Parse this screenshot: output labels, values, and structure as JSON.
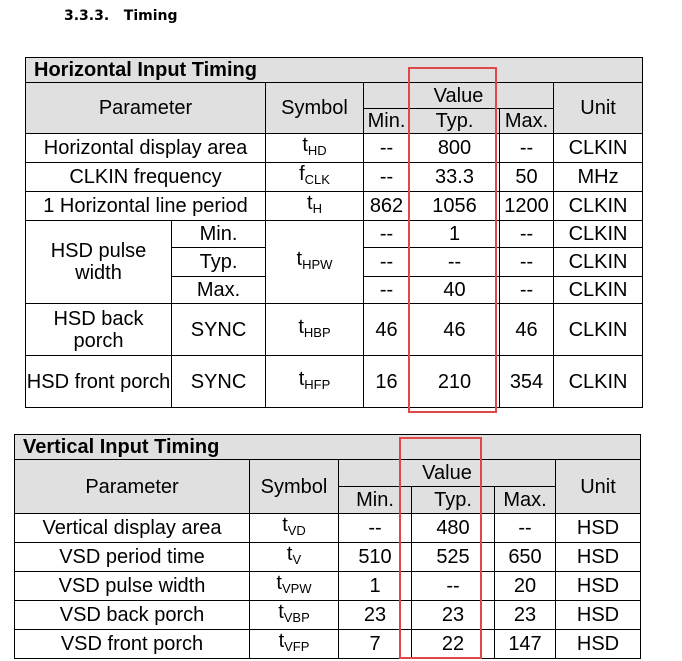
{
  "section_heading": "3.3.3.   Timing",
  "horizontal": {
    "title": "Horizontal Input Timing",
    "headers": {
      "parameter": "Parameter",
      "symbol": "Symbol",
      "value": "Value",
      "min": "Min.",
      "typ": "Typ.",
      "max": "Max.",
      "unit": "Unit"
    },
    "rows": [
      {
        "param": "Horizontal display area",
        "sym": "t",
        "sub": "HD",
        "min": "--",
        "typ": "800",
        "max": "--",
        "unit": "CLKIN"
      },
      {
        "param": "CLKIN frequency",
        "sym": "f",
        "sub": "CLK",
        "min": "--",
        "typ": "33.3",
        "max": "50",
        "unit": "MHz"
      },
      {
        "param": "1 Horizontal line period",
        "sym": "t",
        "sub": "H",
        "min": "862",
        "typ": "1056",
        "max": "1200",
        "unit": "CLKIN"
      }
    ],
    "hsd_pulse": {
      "param": "HSD pulse width",
      "sym": "t",
      "sub": "HPW",
      "rows": [
        {
          "cond": "Min.",
          "min": "--",
          "typ": "1",
          "max": "--",
          "unit": "CLKIN"
        },
        {
          "cond": "Typ.",
          "min": "--",
          "typ": "--",
          "max": "--",
          "unit": "CLKIN"
        },
        {
          "cond": "Max.",
          "min": "--",
          "typ": "40",
          "max": "--",
          "unit": "CLKIN"
        }
      ]
    },
    "hsd_back": {
      "param": "HSD back porch",
      "cond": "SYNC",
      "sym": "t",
      "sub": "HBP",
      "min": "46",
      "typ": "46",
      "max": "46",
      "unit": "CLKIN"
    },
    "hsd_front": {
      "param": "HSD front porch",
      "cond": "SYNC",
      "sym": "t",
      "sub": "HFP",
      "min": "16",
      "typ": "210",
      "max": "354",
      "unit": "CLKIN"
    }
  },
  "vertical": {
    "title": "Vertical Input Timing",
    "headers": {
      "parameter": "Parameter",
      "symbol": "Symbol",
      "value": "Value",
      "min": "Min.",
      "typ": "Typ.",
      "max": "Max.",
      "unit": "Unit"
    },
    "rows": [
      {
        "param": "Vertical display area",
        "sym": "t",
        "sub": "VD",
        "min": "--",
        "typ": "480",
        "max": "--",
        "unit": "HSD"
      },
      {
        "param": "VSD period time",
        "sym": "t",
        "sub": "V",
        "min": "510",
        "typ": "525",
        "max": "650",
        "unit": "HSD"
      },
      {
        "param": "VSD pulse width",
        "sym": "t",
        "sub": "VPW",
        "min": "1",
        "typ": "--",
        "max": "20",
        "unit": "HSD"
      },
      {
        "param": "VSD back porch",
        "sym": "t",
        "sub": "VBP",
        "min": "23",
        "typ": "23",
        "max": "23",
        "unit": "HSD"
      },
      {
        "param": "VSD front porch",
        "sym": "t",
        "sub": "VFP",
        "min": "7",
        "typ": "22",
        "max": "147",
        "unit": "HSD"
      }
    ]
  },
  "highlight_color": "#e04848"
}
